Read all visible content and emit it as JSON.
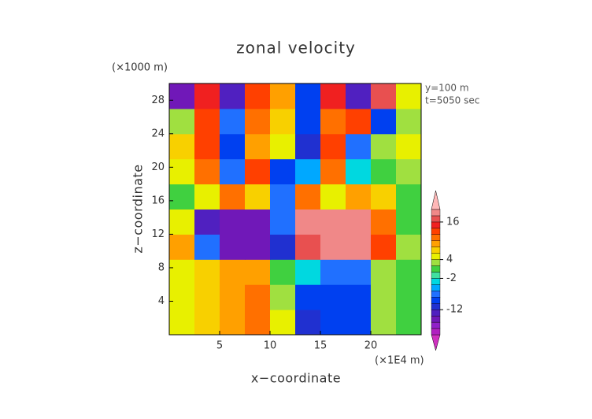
{
  "chart_data": {
    "type": "contour",
    "title": "zonal velocity",
    "x_label": "x−coordinate",
    "y_label": "z−coordinate",
    "x_unit": "(×1E4 m)",
    "y_unit": "(×1000 m)",
    "annotations": [
      "y=100 m",
      "t=5050 sec"
    ],
    "xlim": [
      0,
      25
    ],
    "ylim": [
      0,
      30
    ],
    "xticks": [
      5,
      10,
      15,
      20
    ],
    "yticks": [
      4,
      8,
      12,
      16,
      20,
      24,
      28
    ],
    "x": [
      1.25,
      3.75,
      6.25,
      8.75,
      11.25,
      13.75,
      16.25,
      18.75,
      21.25,
      23.75
    ],
    "y": [
      1.5,
      4.5,
      7.5,
      10.5,
      13.5,
      16.5,
      19.5,
      22.5,
      25.5,
      28.5
    ],
    "values": [
      [
        5,
        6,
        9,
        10,
        4,
        -12,
        -10,
        -10,
        2,
        1
      ],
      [
        5,
        6,
        9,
        10,
        2,
        -10,
        -10,
        -10,
        2,
        1
      ],
      [
        5,
        6,
        8,
        9,
        0,
        -4,
        -8,
        -8,
        2,
        1
      ],
      [
        8,
        -8,
        -16,
        -16,
        -12,
        16,
        18,
        18,
        12,
        2
      ],
      [
        4,
        -14,
        -16,
        -16,
        -8,
        18,
        18,
        18,
        10,
        0
      ],
      [
        1,
        4,
        10,
        6,
        -8,
        10,
        4,
        8,
        6,
        1
      ],
      [
        4,
        10,
        -8,
        12,
        -10,
        -6,
        10,
        -4,
        0,
        3
      ],
      [
        6,
        12,
        -10,
        8,
        4,
        -12,
        12,
        -8,
        2,
        4
      ],
      [
        2,
        12,
        -8,
        10,
        6,
        -10,
        10,
        12,
        -10,
        3
      ],
      [
        -16,
        14,
        -14,
        12,
        8,
        -10,
        14,
        -14,
        16,
        4
      ]
    ],
    "colorbar": {
      "levels": [
        -20,
        -18,
        -16,
        -14,
        -12,
        -10,
        -8,
        -6,
        -4,
        -2,
        0,
        2,
        4,
        6,
        8,
        10,
        12,
        14,
        16,
        18,
        20
      ],
      "colors": [
        "#d030c0",
        "#b020c0",
        "#9020c8",
        "#7018b8",
        "#5020c0",
        "#2030d0",
        "#0040f0",
        "#2070ff",
        "#00a8ff",
        "#00d8e0",
        "#40e0a0",
        "#40d040",
        "#a0e040",
        "#e8f000",
        "#f8d000",
        "#ffa000",
        "#ff7000",
        "#ff4000",
        "#f02020",
        "#e85050",
        "#f08888",
        "#ffb8b8"
      ],
      "ticks": [
        -12,
        -2,
        4,
        16
      ]
    }
  }
}
